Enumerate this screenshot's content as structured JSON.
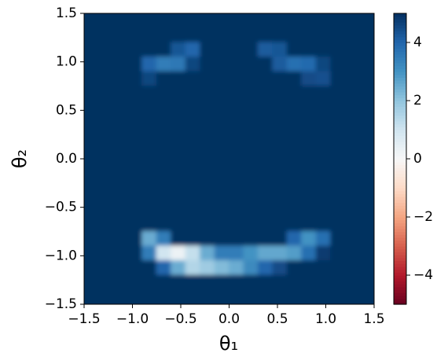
{
  "chart_data": {
    "type": "heatmap",
    "colormap": "RdBu",
    "xlabel": "θ₁",
    "ylabel": "θ₂",
    "xlim": [
      -1.5,
      1.5
    ],
    "ylim": [
      -1.5,
      1.5
    ],
    "zlim": [
      -5,
      5
    ],
    "xticks": [
      {
        "value": -1.5,
        "label": "−1.5"
      },
      {
        "value": -1,
        "label": "−1.0"
      },
      {
        "value": -0.5,
        "label": "−0.5"
      },
      {
        "value": 0,
        "label": "0.0"
      },
      0.5,
      {
        "value": 1,
        "label": "1.0"
      },
      1.5
    ],
    "yticks": [
      {
        "value": -1.5,
        "label": "−1.5"
      },
      {
        "value": -1,
        "label": "−1.0"
      },
      {
        "value": -0.5,
        "label": "−0.5"
      },
      {
        "value": 0,
        "label": "0.0"
      },
      0.5,
      {
        "value": 1,
        "label": "1.0"
      },
      1.5
    ],
    "zticks": [
      {
        "value": -4,
        "label": "−4"
      },
      {
        "value": -2,
        "label": "−2"
      },
      0,
      2,
      4
    ],
    "z": [
      [
        5,
        5,
        5,
        5,
        5,
        5,
        5,
        5,
        5,
        5,
        5,
        5,
        5,
        5,
        5,
        5,
        5,
        5,
        5,
        5
      ],
      [
        5,
        5,
        5,
        5,
        5,
        5,
        5,
        5,
        5,
        5,
        5,
        5,
        5,
        5,
        5,
        5,
        5,
        5,
        5,
        5
      ],
      [
        5,
        5,
        5,
        5,
        5,
        5,
        4.3,
        4.0,
        5,
        5,
        5,
        5,
        4.2,
        4.3,
        5,
        5,
        5,
        5,
        5,
        5
      ],
      [
        5,
        5,
        5,
        5,
        4.0,
        3.5,
        3.6,
        4.6,
        5,
        5,
        5,
        5,
        5,
        4.2,
        3.8,
        3.9,
        4.6,
        5,
        5,
        5
      ],
      [
        5,
        5,
        5,
        5,
        4.6,
        5,
        5,
        5,
        5,
        5,
        5,
        5,
        5,
        5,
        5,
        4.5,
        4.4,
        5,
        5,
        5
      ],
      [
        5,
        5,
        5,
        5,
        5,
        5,
        5,
        5,
        5,
        5,
        5,
        5,
        5,
        5,
        5,
        5,
        5,
        5,
        5,
        5
      ],
      [
        5,
        5,
        5,
        5,
        5,
        5,
        5,
        5,
        5,
        5,
        5,
        5,
        5,
        5,
        5,
        5,
        5,
        5,
        5,
        5
      ],
      [
        5,
        5,
        5,
        5,
        5,
        5,
        5,
        5,
        5,
        5,
        5,
        5,
        5,
        5,
        5,
        5,
        5,
        5,
        5,
        5
      ],
      [
        5,
        5,
        5,
        5,
        5,
        5,
        5,
        5,
        5,
        5,
        5,
        5,
        5,
        5,
        5,
        5,
        5,
        5,
        5,
        5
      ],
      [
        5,
        5,
        5,
        5,
        5,
        5,
        5,
        5,
        5,
        5,
        5,
        5,
        5,
        5,
        5,
        5,
        5,
        5,
        5,
        5
      ],
      [
        5,
        5,
        5,
        5,
        5,
        5,
        5,
        5,
        5,
        5,
        5,
        5,
        5,
        5,
        5,
        5,
        5,
        5,
        5,
        5
      ],
      [
        5,
        5,
        5,
        5,
        5,
        5,
        5,
        5,
        5,
        5,
        5,
        5,
        5,
        5,
        5,
        5,
        5,
        5,
        5,
        5
      ],
      [
        5,
        5,
        5,
        5,
        5,
        5,
        5,
        5,
        5,
        5,
        5,
        5,
        5,
        5,
        5,
        5,
        5,
        5,
        5,
        5
      ],
      [
        5,
        5,
        5,
        5,
        5,
        5,
        5,
        5,
        5,
        5,
        5,
        5,
        5,
        5,
        5,
        5,
        5,
        5,
        5,
        5
      ],
      [
        5,
        5,
        5,
        5,
        5,
        5,
        5,
        5,
        5,
        5,
        5,
        5,
        5,
        5,
        5,
        5,
        5,
        5,
        5,
        5
      ],
      [
        5,
        5,
        5,
        5,
        2.5,
        3.5,
        5,
        5,
        5,
        5,
        5,
        5,
        5,
        5,
        4.0,
        3.0,
        3.8,
        5,
        5,
        5
      ],
      [
        5,
        5,
        5,
        5,
        3.5,
        1.0,
        0.3,
        1.2,
        2.5,
        3.5,
        3.5,
        3.0,
        2.6,
        2.6,
        2.8,
        3.8,
        4.8,
        5,
        5,
        5
      ],
      [
        5,
        5,
        5,
        5,
        5,
        4,
        2.5,
        1.5,
        1.8,
        2.2,
        2.5,
        3.2,
        4.0,
        4.5,
        5,
        5,
        5,
        5,
        5,
        5
      ],
      [
        5,
        5,
        5,
        5,
        5,
        5,
        5,
        5,
        5,
        5,
        5,
        5,
        5,
        5,
        5,
        5,
        5,
        5,
        5,
        5
      ],
      [
        5,
        5,
        5,
        5,
        5,
        5,
        5,
        5,
        5,
        5,
        5,
        5,
        5,
        5,
        5,
        5,
        5,
        5,
        5,
        5
      ]
    ]
  }
}
